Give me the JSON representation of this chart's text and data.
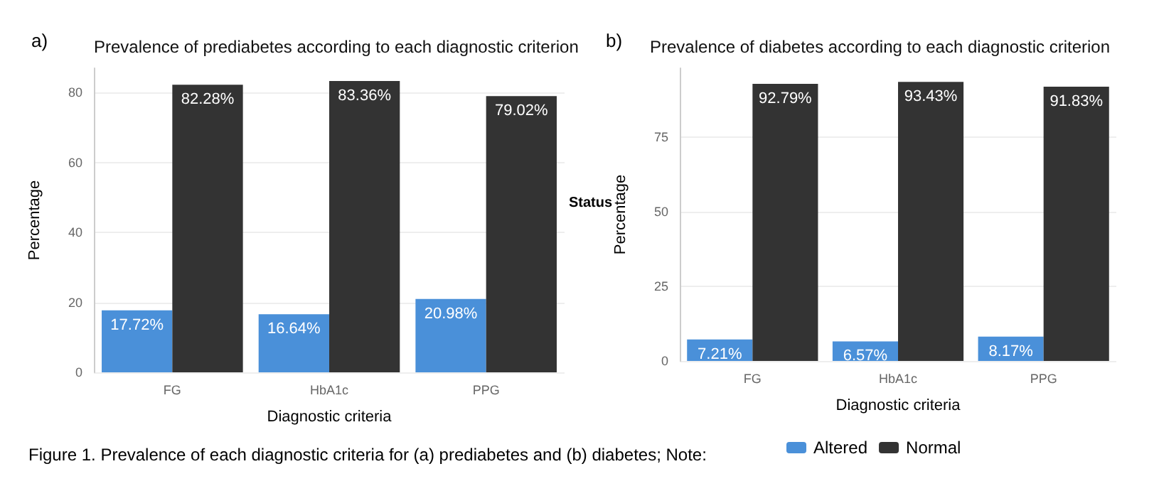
{
  "chart_data": [
    {
      "type": "bar",
      "title": "Prevalence of prediabetes according to each diagnostic criterion",
      "xlabel": "Diagnostic criteria",
      "ylabel": "Percentage",
      "legend_title": "Status",
      "annotations": [
        "a)",
        "Figure 1. Prevalence of each diagnostic criteria for (a) prediabetes and (b) diabetes; Note:"
      ],
      "categories": [
        "FG",
        "HbA1c",
        "PPG"
      ],
      "series": [
        {
          "name": "Altered",
          "color": "#4a90d9",
          "values": [
            17.72,
            16.64,
            20.98
          ],
          "value_labels": [
            "17.72%",
            "16.64%",
            "20.98%"
          ]
        },
        {
          "name": "Normal",
          "color": "#333333",
          "values": [
            82.28,
            83.36,
            79.02
          ],
          "value_labels": [
            "82.28%",
            "83.36%",
            "79.02%"
          ]
        }
      ],
      "ylim": [
        0,
        87
      ],
      "yticks": [
        0,
        20,
        40,
        60,
        80
      ],
      "grid": "y",
      "legend": "bottom"
    },
    {
      "type": "bar",
      "title": "Prevalence of diabetes according to each diagnostic criterion",
      "xlabel": "Diagnostic criteria",
      "ylabel": "Percentage",
      "annotations": [
        "b)"
      ],
      "categories": [
        "FG",
        "HbA1c",
        "PPG"
      ],
      "series": [
        {
          "color": "#4a90d9",
          "values": [
            7.21,
            6.57,
            8.17
          ],
          "value_labels": [
            "7.21%",
            "6.57%",
            "8.17%"
          ]
        },
        {
          "color": "#333333",
          "values": [
            92.79,
            93.43,
            91.83
          ],
          "value_labels": [
            "92.79%",
            "93.43%",
            "91.83%"
          ]
        }
      ],
      "ylim": [
        0,
        98
      ],
      "yticks": [
        0,
        25,
        50,
        75
      ],
      "grid": "y"
    }
  ]
}
